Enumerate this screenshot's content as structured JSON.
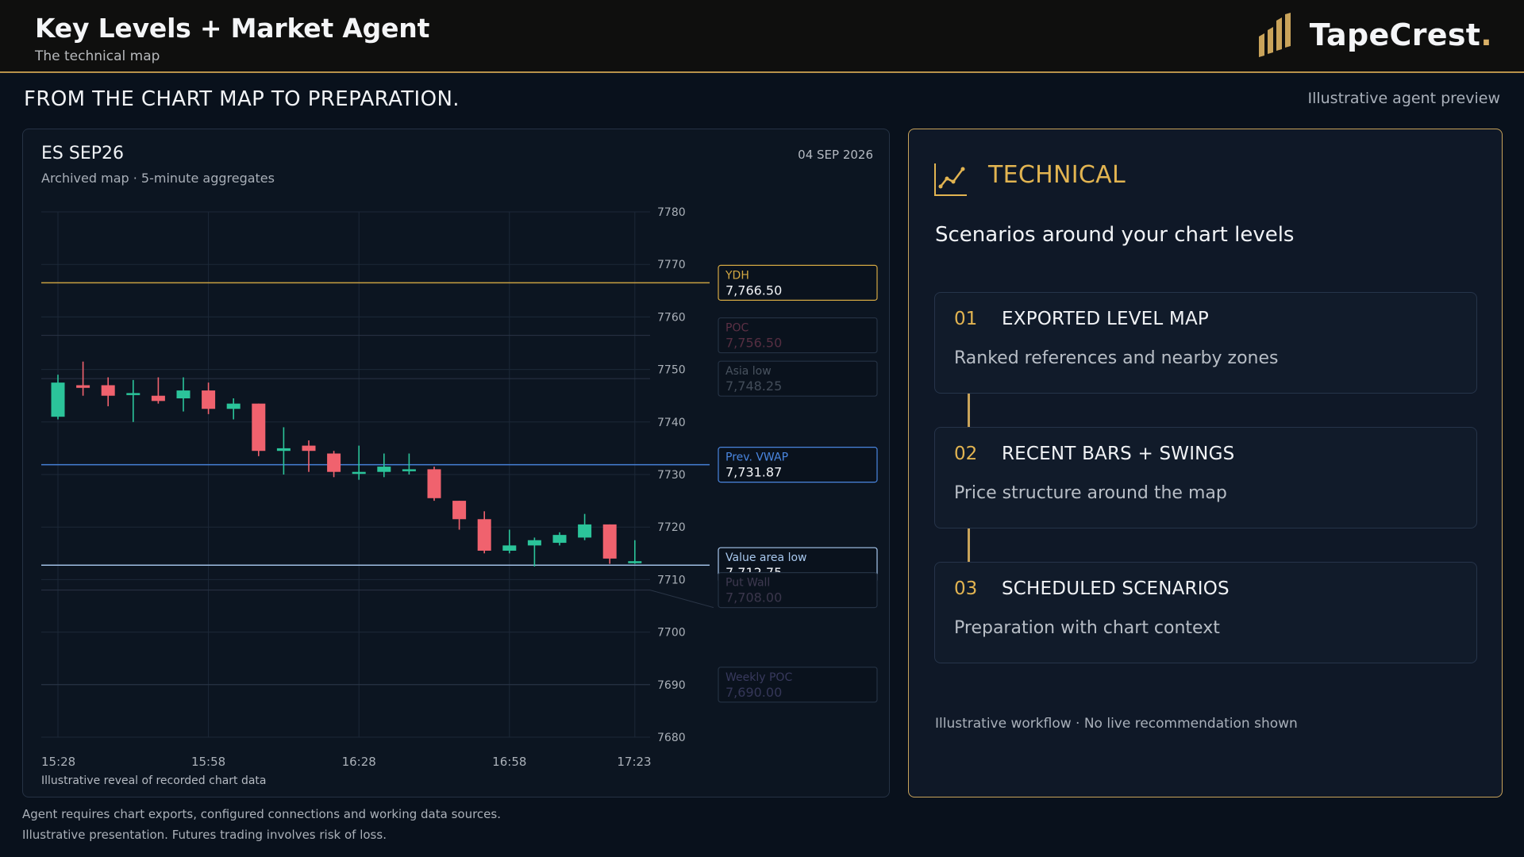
{
  "header": {
    "title": "Key Levels + Market Agent",
    "subtitle": "The technical map",
    "brand_name": "TapeCrest",
    "brand_dot": "."
  },
  "section": {
    "heading": "FROM THE CHART MAP TO PREPARATION.",
    "preview_note": "Illustrative agent preview"
  },
  "chart_panel": {
    "symbol": "ES SEP26",
    "date": "04 SEP 2026",
    "subtitle": "Archived map · 5-minute aggregates",
    "footnote": "Illustrative reveal of recorded chart data"
  },
  "chart_data": {
    "type": "candlestick",
    "ylim": [
      7680,
      7780
    ],
    "y_ticks": [
      7780,
      7770,
      7760,
      7750,
      7740,
      7730,
      7720,
      7710,
      7700,
      7690,
      7680
    ],
    "x_ticks": [
      "15:28",
      "15:58",
      "16:28",
      "16:58",
      "17:23"
    ],
    "x_tick_index": [
      0,
      6,
      12,
      18,
      23
    ],
    "up_color": "#2bc49a",
    "down_color": "#f0626e",
    "candles": [
      {
        "o": 7741.0,
        "h": 7749.0,
        "l": 7740.5,
        "c": 7747.5
      },
      {
        "o": 7747.0,
        "h": 7751.5,
        "l": 7745.0,
        "c": 7746.5
      },
      {
        "o": 7747.0,
        "h": 7748.5,
        "l": 7743.0,
        "c": 7745.0
      },
      {
        "o": 7745.5,
        "h": 7748.0,
        "l": 7740.0,
        "c": 7745.5
      },
      {
        "o": 7745.0,
        "h": 7748.5,
        "l": 7743.5,
        "c": 7744.0
      },
      {
        "o": 7744.5,
        "h": 7748.5,
        "l": 7742.0,
        "c": 7746.0
      },
      {
        "o": 7746.0,
        "h": 7747.5,
        "l": 7741.5,
        "c": 7742.5
      },
      {
        "o": 7742.5,
        "h": 7744.5,
        "l": 7740.5,
        "c": 7743.5
      },
      {
        "o": 7743.5,
        "h": 7743.5,
        "l": 7733.5,
        "c": 7734.5
      },
      {
        "o": 7734.5,
        "h": 7739.0,
        "l": 7730.0,
        "c": 7735.0
      },
      {
        "o": 7735.5,
        "h": 7736.5,
        "l": 7730.5,
        "c": 7734.5
      },
      {
        "o": 7734.0,
        "h": 7734.5,
        "l": 7729.5,
        "c": 7730.5
      },
      {
        "o": 7730.5,
        "h": 7735.5,
        "l": 7729.0,
        "c": 7730.5
      },
      {
        "o": 7730.5,
        "h": 7734.0,
        "l": 7729.5,
        "c": 7731.5
      },
      {
        "o": 7731.0,
        "h": 7734.0,
        "l": 7730.0,
        "c": 7731.0
      },
      {
        "o": 7731.0,
        "h": 7731.5,
        "l": 7725.0,
        "c": 7725.5
      },
      {
        "o": 7725.0,
        "h": 7725.0,
        "l": 7719.5,
        "c": 7721.5
      },
      {
        "o": 7721.5,
        "h": 7723.0,
        "l": 7715.0,
        "c": 7715.5
      },
      {
        "o": 7715.5,
        "h": 7719.5,
        "l": 7715.0,
        "c": 7716.5
      },
      {
        "o": 7716.5,
        "h": 7718.0,
        "l": 7712.5,
        "c": 7717.5
      },
      {
        "o": 7717.0,
        "h": 7719.0,
        "l": 7716.5,
        "c": 7718.5
      },
      {
        "o": 7718.0,
        "h": 7722.5,
        "l": 7717.5,
        "c": 7720.5
      },
      {
        "o": 7720.5,
        "h": 7720.5,
        "l": 7713.0,
        "c": 7714.0
      },
      {
        "o": 7713.5,
        "h": 7717.5,
        "l": 7713.0,
        "c": 7713.5
      }
    ],
    "levels": [
      {
        "name": "YDH",
        "value": 7766.5,
        "label": "7,766.50",
        "color": "#d4a843",
        "line": true,
        "active": true
      },
      {
        "name": "POC",
        "value": 7756.5,
        "label": "7,756.50",
        "color": "#9f4a66",
        "line": false,
        "active": false
      },
      {
        "name": "Asia low",
        "value": 7748.25,
        "label": "7,748.25",
        "color": "#7b8795",
        "line": false,
        "active": false
      },
      {
        "name": "Prev. VWAP",
        "value": 7731.87,
        "label": "7,731.87",
        "color": "#4a86e0",
        "line": true,
        "active": true
      },
      {
        "name": "Value area low",
        "value": 7712.75,
        "label": "7,712.75",
        "color": "#a8c8ee",
        "line": true,
        "active": true
      },
      {
        "name": "Put Wall",
        "value": 7708.0,
        "label": "7,708.00",
        "color": "#6a5a7a",
        "line": false,
        "active": false
      },
      {
        "name": "Weekly POC",
        "value": 7690.0,
        "label": "7,690.00",
        "color": "#5e5a92",
        "line": false,
        "active": false
      }
    ]
  },
  "agent_panel": {
    "icon": "line-chart-icon",
    "title": "TECHNICAL",
    "heading": "Scenarios around your chart levels",
    "steps": [
      {
        "num": "01",
        "title": "EXPORTED LEVEL MAP",
        "desc": "Ranked references and nearby zones"
      },
      {
        "num": "02",
        "title": "RECENT BARS + SWINGS",
        "desc": "Price structure around the map"
      },
      {
        "num": "03",
        "title": "SCHEDULED SCENARIOS",
        "desc": "Preparation with chart context"
      }
    ],
    "footnote": "Illustrative workflow · No live recommendation shown"
  },
  "disclaimers": [
    "Agent requires chart exports, configured connections and working data sources.",
    "Illustrative presentation. Futures trading involves risk of loss."
  ]
}
